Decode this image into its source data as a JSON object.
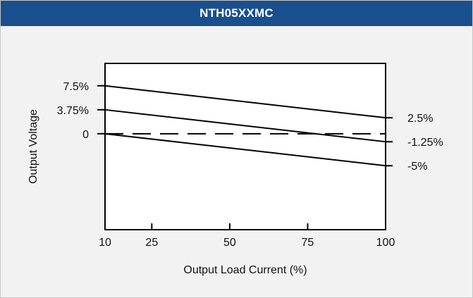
{
  "header": {
    "title": "NTH05XXMC"
  },
  "colors": {
    "header_bg": "#1a4f8e",
    "panel_bg": "#f2f2f2",
    "line": "#000000"
  },
  "chart_data": {
    "type": "line",
    "title": "NTH05XXMC",
    "xlabel": "Output Load Current (%)",
    "ylabel": "Output Voltage",
    "xlim": [
      10,
      100
    ],
    "ylim": [
      -15,
      11
    ],
    "x_ticks": [
      10,
      25,
      50,
      75,
      100
    ],
    "y_ticks": [
      {
        "value": 7.5,
        "label": "7.5%"
      },
      {
        "value": 3.75,
        "label": "3.75%"
      },
      {
        "value": 0,
        "label": "0"
      }
    ],
    "series": [
      {
        "x": [
          10,
          100
        ],
        "y": [
          7.5,
          2.5
        ],
        "end_label": "2.5%",
        "style": "solid"
      },
      {
        "x": [
          10,
          100
        ],
        "y": [
          3.75,
          -1.25
        ],
        "end_label": "-1.25%",
        "style": "solid"
      },
      {
        "x": [
          10,
          100
        ],
        "y": [
          0,
          -5
        ],
        "end_label": "-5%",
        "style": "solid"
      },
      {
        "x": [
          10,
          100
        ],
        "y": [
          0,
          0
        ],
        "end_label": "",
        "style": "dashed"
      }
    ]
  }
}
